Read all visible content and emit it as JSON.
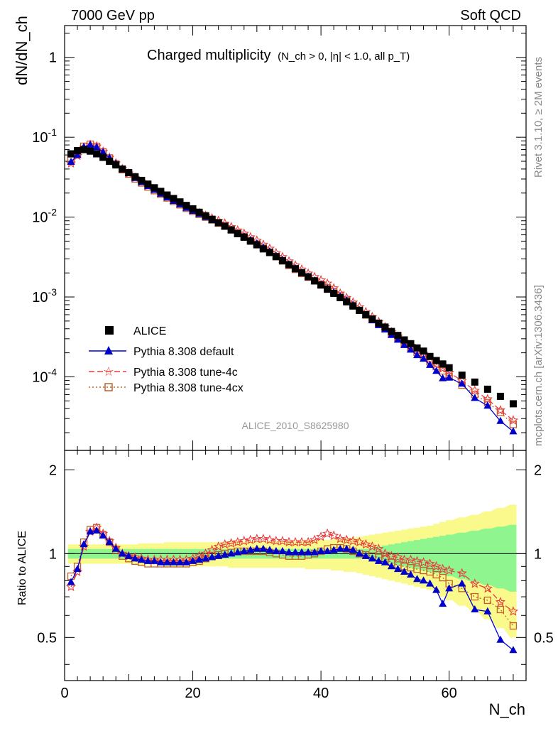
{
  "header": {
    "energy_label": "7000 GeV pp",
    "process_label": "Soft QCD",
    "plot_title_main": "Charged multiplicity",
    "plot_title_cuts": "(N_ch > 0, |η| < 1.0, all p_T)",
    "rivet_label": "Rivet 3.1.10, ≥ 2M events",
    "mcplots_label": "mcplots.cern.ch [arXiv:1306.3436]",
    "analysis_id": "ALICE_2010_S8625980"
  },
  "axes": {
    "top_ylabel": "dN/dN_ch",
    "bottom_ylabel": "Ratio to ALICE",
    "xlabel": "N_ch",
    "x_ticks": [
      "0",
      "20",
      "40",
      "60"
    ],
    "top_y_ticks": [
      "1",
      "10^-1",
      "10^-2",
      "10^-3",
      "10^-4"
    ],
    "ratio_ticks": [
      "0.5",
      "1",
      "2"
    ]
  },
  "legend": {
    "data": "ALICE",
    "default": "Pythia 8.308 default",
    "tune4c": "Pythia 8.308 tune-4c",
    "tune4cx": "Pythia 8.308 tune-4cx"
  },
  "colors": {
    "data": "#000000",
    "default": "#0000cc",
    "tune4c": "#e83e3e",
    "tune4cx": "#c0602a",
    "band_inner": "#8ff58f",
    "band_outer": "#fafa8c"
  },
  "chart_data": {
    "type": "scatter",
    "x_range": [
      0,
      72
    ],
    "y_range_main": [
      1.2e-05,
      2.5
    ],
    "y_scale_main": "log",
    "y_range_ratio": [
      0.35,
      2.35
    ],
    "y_scale_ratio": "log",
    "legend_position": "lower-left",
    "x": [
      1,
      2,
      3,
      4,
      5,
      6,
      7,
      8,
      9,
      10,
      11,
      12,
      13,
      14,
      15,
      16,
      17,
      18,
      19,
      20,
      21,
      22,
      23,
      24,
      25,
      26,
      27,
      28,
      29,
      30,
      31,
      32,
      33,
      34,
      35,
      36,
      37,
      38,
      39,
      40,
      41,
      42,
      43,
      44,
      45,
      46,
      47,
      48,
      49,
      50,
      51,
      52,
      53,
      54,
      55,
      56,
      57,
      58,
      59,
      60,
      62,
      64,
      66,
      68,
      70
    ],
    "alice": [
      0.062,
      0.068,
      0.07,
      0.067,
      0.062,
      0.056,
      0.05,
      0.045,
      0.04,
      0.036,
      0.032,
      0.0288,
      0.0259,
      0.0233,
      0.021,
      0.0189,
      0.0171,
      0.0155,
      0.014,
      0.0127,
      0.0115,
      0.0104,
      0.0094,
      0.0085,
      0.0077,
      0.0069,
      0.0062,
      0.0056,
      0.005,
      0.0045,
      0.004,
      0.0036,
      0.0032,
      0.00285,
      0.00254,
      0.00226,
      0.00201,
      0.00179,
      0.00159,
      0.00141,
      0.00125,
      0.00111,
      0.00098,
      0.00087,
      0.00077,
      0.00068,
      0.0006,
      0.00053,
      0.00047,
      0.00042,
      0.00037,
      0.00033,
      0.00029,
      0.00026,
      0.00023,
      0.00021,
      0.00018,
      0.00016,
      0.000145,
      0.00013,
      0.000105,
      8.6e-05,
      7e-05,
      5.7e-05,
      4.6e-05
    ],
    "ratio_default": [
      0.79,
      0.88,
      1.08,
      1.2,
      1.21,
      1.16,
      1.1,
      1.04,
      1.0,
      0.98,
      0.96,
      0.95,
      0.94,
      0.94,
      0.93,
      0.93,
      0.93,
      0.93,
      0.93,
      0.94,
      0.95,
      0.96,
      0.97,
      0.98,
      0.99,
      1.0,
      1.01,
      1.02,
      1.03,
      1.04,
      1.04,
      1.03,
      1.02,
      1.02,
      1.01,
      1.01,
      1.01,
      1.01,
      1.01,
      1.02,
      1.02,
      1.03,
      1.04,
      1.04,
      1.03,
      1.0,
      0.98,
      0.96,
      0.94,
      0.93,
      0.9,
      0.88,
      0.86,
      0.84,
      0.81,
      0.8,
      0.78,
      0.74,
      0.66,
      0.75,
      0.78,
      0.63,
      0.62,
      0.49,
      0.45
    ],
    "ratio_4c": [
      0.76,
      0.86,
      1.06,
      1.2,
      1.24,
      1.18,
      1.11,
      1.05,
      1.0,
      0.98,
      0.97,
      0.96,
      0.95,
      0.95,
      0.95,
      0.95,
      0.95,
      0.95,
      0.95,
      0.96,
      0.98,
      1.0,
      1.03,
      1.06,
      1.08,
      1.09,
      1.1,
      1.11,
      1.12,
      1.13,
      1.13,
      1.12,
      1.11,
      1.11,
      1.1,
      1.1,
      1.1,
      1.1,
      1.12,
      1.15,
      1.18,
      1.16,
      1.13,
      1.12,
      1.11,
      1.1,
      1.08,
      1.06,
      1.04,
      1.0,
      0.98,
      0.97,
      0.95,
      0.95,
      0.94,
      0.93,
      0.92,
      0.9,
      0.88,
      0.87,
      0.85,
      0.78,
      0.75,
      0.67,
      0.62
    ],
    "ratio_4cx": [
      0.83,
      0.9,
      1.1,
      1.22,
      1.24,
      1.17,
      1.1,
      1.03,
      0.98,
      0.96,
      0.94,
      0.93,
      0.92,
      0.92,
      0.92,
      0.92,
      0.92,
      0.92,
      0.92,
      0.93,
      0.94,
      0.96,
      0.98,
      0.99,
      1.0,
      1.01,
      1.02,
      1.02,
      1.02,
      1.02,
      1.02,
      1.01,
      1.0,
      0.99,
      0.98,
      0.98,
      0.98,
      0.99,
      1.0,
      1.02,
      1.04,
      1.05,
      1.05,
      1.04,
      1.02,
      1.0,
      0.99,
      0.98,
      0.97,
      0.96,
      0.93,
      0.91,
      0.9,
      0.89,
      0.88,
      0.87,
      0.86,
      0.84,
      0.82,
      0.78,
      0.75,
      0.7,
      0.68,
      0.63,
      0.55
    ],
    "band_inner_half": [
      0.04,
      0.04,
      0.04,
      0.04,
      0.04,
      0.04,
      0.04,
      0.04,
      0.04,
      0.04,
      0.04,
      0.04,
      0.04,
      0.04,
      0.04,
      0.04,
      0.04,
      0.04,
      0.04,
      0.04,
      0.04,
      0.04,
      0.04,
      0.04,
      0.04,
      0.04,
      0.04,
      0.04,
      0.04,
      0.04,
      0.04,
      0.04,
      0.04,
      0.04,
      0.04,
      0.04,
      0.04,
      0.04,
      0.04,
      0.04,
      0.04,
      0.04,
      0.04,
      0.04,
      0.04,
      0.04,
      0.04,
      0.05,
      0.06,
      0.07,
      0.08,
      0.09,
      0.1,
      0.11,
      0.12,
      0.13,
      0.14,
      0.15,
      0.16,
      0.17,
      0.19,
      0.21,
      0.23,
      0.25,
      0.27
    ],
    "band_outer_half": [
      0.08,
      0.08,
      0.08,
      0.08,
      0.08,
      0.08,
      0.08,
      0.08,
      0.08,
      0.08,
      0.08,
      0.09,
      0.09,
      0.09,
      0.09,
      0.1,
      0.1,
      0.1,
      0.1,
      0.1,
      0.1,
      0.1,
      0.1,
      0.1,
      0.1,
      0.11,
      0.11,
      0.11,
      0.11,
      0.11,
      0.11,
      0.11,
      0.11,
      0.11,
      0.11,
      0.11,
      0.11,
      0.12,
      0.12,
      0.12,
      0.12,
      0.13,
      0.13,
      0.14,
      0.14,
      0.15,
      0.16,
      0.17,
      0.18,
      0.19,
      0.2,
      0.21,
      0.22,
      0.23,
      0.24,
      0.25,
      0.26,
      0.28,
      0.3,
      0.32,
      0.35,
      0.38,
      0.42,
      0.46,
      0.5
    ]
  }
}
